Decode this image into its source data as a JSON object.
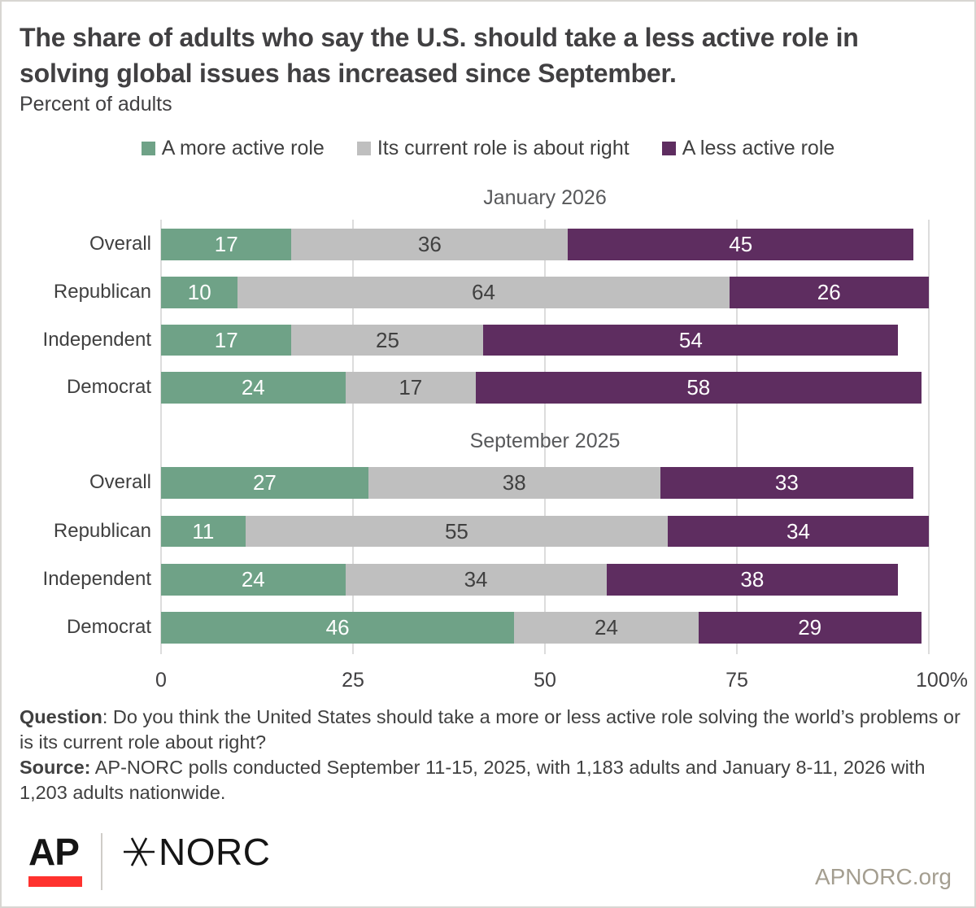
{
  "header": {
    "title": "The share of adults who say the U.S. should take a less active role in solving global issues has increased since September.",
    "subtitle": "Percent of adults"
  },
  "legend": {
    "items": [
      {
        "label": "A more active role",
        "color": "#6FA287"
      },
      {
        "label": "Its current role is about right",
        "color": "#BFBFBF"
      },
      {
        "label": "A less active role",
        "color": "#5E2D60"
      }
    ]
  },
  "chart_data": {
    "type": "bar",
    "stacked": true,
    "orientation": "horizontal",
    "title": "The share of adults who say the U.S. should take a less active role in solving global issues has increased since September.",
    "subtitle": "Percent of adults",
    "xlim": [
      0,
      100
    ],
    "x_tick_values": [
      0,
      25,
      50,
      75,
      100
    ],
    "x_tick_labels": [
      "0",
      "25",
      "50",
      "75",
      "100%"
    ],
    "grid": true,
    "legend_position": "top",
    "series": [
      "A more active role",
      "Its current role is about right",
      "A less active role"
    ],
    "series_colors": [
      "#6FA287",
      "#BFBFBF",
      "#5E2D60"
    ],
    "value_label_colors": [
      "#FFFFFF",
      "#404040",
      "#FFFFFF"
    ],
    "groups": [
      {
        "title": "January 2026",
        "categories": [
          "Overall",
          "Republican",
          "Independent",
          "Democrat"
        ],
        "rows": [
          [
            17,
            36,
            45
          ],
          [
            10,
            64,
            26
          ],
          [
            17,
            25,
            54
          ],
          [
            24,
            17,
            58
          ]
        ]
      },
      {
        "title": "September 2025",
        "categories": [
          "Overall",
          "Republican",
          "Independent",
          "Democrat"
        ],
        "rows": [
          [
            27,
            38,
            33
          ],
          [
            11,
            55,
            34
          ],
          [
            24,
            34,
            38
          ],
          [
            46,
            24,
            29
          ]
        ]
      }
    ]
  },
  "notes": {
    "question_label": "Question",
    "question_rest": ": Do you think the United States should take a more or less active role solving the world’s problems or is its current role about right?",
    "source_label": "Source:",
    "source_rest": " AP-NORC polls conducted September 11-15, 2025, with 1,183 adults and January 8-11, 2026 with 1,203 adults nationwide."
  },
  "footer": {
    "ap_logo_text": "AP",
    "norc_logo_text": "NORC",
    "site": "APNORC.org",
    "ap_red": "#FF322E"
  }
}
